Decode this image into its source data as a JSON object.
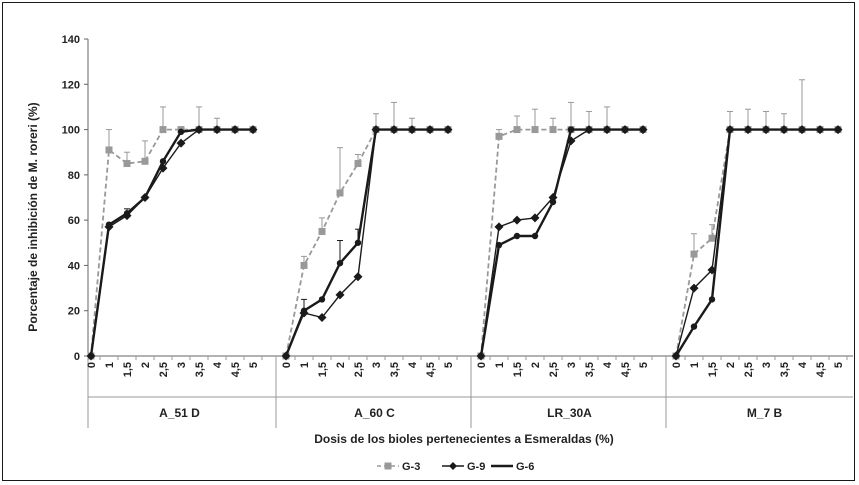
{
  "chart_data": {
    "type": "line",
    "title": "",
    "xlabel": "Dosis de los bioles pertenecientes a Esmeraldas (%)",
    "ylabel": "Porcentaje de inhibición de M. roreri (%)",
    "ylim": [
      0,
      140
    ],
    "yticks": [
      0,
      20,
      40,
      60,
      80,
      100,
      120,
      140
    ],
    "grid": false,
    "legend_position": "bottom",
    "doses": [
      "0",
      "1",
      "1,5",
      "2",
      "2,5",
      "3",
      "3,5",
      "4",
      "4,5",
      "5"
    ],
    "groups": [
      {
        "label": "A_51 D",
        "series": [
          {
            "name": "G-3",
            "values": [
              0,
              91,
              85,
              86,
              100,
              100,
              100,
              100,
              100,
              100
            ],
            "errors": [
              0,
              9,
              5,
              9,
              10,
              0,
              10,
              5,
              0,
              0
            ]
          },
          {
            "name": "G-9",
            "values": [
              0,
              57,
              62,
              70,
              83,
              94,
              100,
              100,
              100,
              100
            ],
            "errors": [
              0,
              0,
              3,
              0,
              0,
              0,
              0,
              0,
              0,
              0
            ]
          },
          {
            "name": "G-6",
            "values": [
              0,
              58,
              63,
              70,
              86,
              99,
              100,
              100,
              100,
              100
            ],
            "errors": [
              0,
              0,
              0,
              0,
              0,
              0,
              0,
              0,
              0,
              0
            ]
          }
        ]
      },
      {
        "label": "A_60 C",
        "series": [
          {
            "name": "G-3",
            "values": [
              0,
              40,
              55,
              72,
              85,
              100,
              100,
              100,
              100,
              100
            ],
            "errors": [
              0,
              4,
              6,
              20,
              4,
              7,
              12,
              5,
              0,
              0
            ]
          },
          {
            "name": "G-9",
            "values": [
              0,
              19,
              17,
              27,
              35,
              100,
              100,
              100,
              100,
              100
            ],
            "errors": [
              0,
              0,
              0,
              0,
              0,
              0,
              0,
              0,
              0,
              0
            ]
          },
          {
            "name": "G-6",
            "values": [
              0,
              20,
              25,
              41,
              50,
              100,
              100,
              100,
              100,
              100
            ],
            "errors": [
              0,
              5,
              0,
              10,
              6,
              0,
              0,
              0,
              0,
              0
            ]
          }
        ]
      },
      {
        "label": "LR_30A",
        "series": [
          {
            "name": "G-3",
            "values": [
              0,
              97,
              100,
              100,
              100,
              100,
              100,
              100,
              100,
              100
            ],
            "errors": [
              0,
              3,
              6,
              9,
              5,
              12,
              8,
              10,
              0,
              0
            ]
          },
          {
            "name": "G-9",
            "values": [
              0,
              57,
              60,
              61,
              70,
              95,
              100,
              100,
              100,
              100
            ],
            "errors": [
              0,
              0,
              0,
              0,
              0,
              0,
              0,
              0,
              0,
              0
            ]
          },
          {
            "name": "G-6",
            "values": [
              0,
              49,
              53,
              53,
              68,
              100,
              100,
              100,
              100,
              100
            ],
            "errors": [
              0,
              0,
              0,
              0,
              0,
              0,
              0,
              0,
              0,
              0
            ]
          }
        ]
      },
      {
        "label": "M_7 B",
        "series": [
          {
            "name": "G-3",
            "values": [
              0,
              45,
              52,
              100,
              100,
              100,
              100,
              100,
              100,
              100
            ],
            "errors": [
              0,
              9,
              6,
              8,
              9,
              8,
              7,
              22,
              0,
              0
            ]
          },
          {
            "name": "G-9",
            "values": [
              0,
              30,
              38,
              100,
              100,
              100,
              100,
              100,
              100,
              100
            ],
            "errors": [
              0,
              0,
              0,
              0,
              0,
              0,
              0,
              0,
              0,
              0
            ]
          },
          {
            "name": "G-6",
            "values": [
              0,
              13,
              25,
              100,
              100,
              100,
              100,
              100,
              100,
              100
            ],
            "errors": [
              0,
              0,
              0,
              0,
              0,
              0,
              0,
              0,
              0,
              0
            ]
          }
        ]
      }
    ],
    "legend": [
      {
        "name": "G-3",
        "color": "#999999",
        "dash": "dashed",
        "marker": "square"
      },
      {
        "name": "G-9",
        "color": "#1a1a1a",
        "dash": "solid",
        "marker": "diamond"
      },
      {
        "name": "G-6",
        "color": "#1a1a1a",
        "dash": "solid",
        "marker": "none"
      }
    ]
  }
}
